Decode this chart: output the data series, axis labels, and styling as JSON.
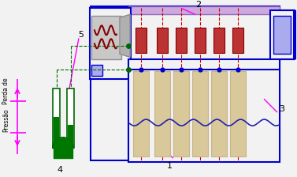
{
  "bg_color": "#f2f2f2",
  "blue": "#0000cc",
  "blue2": "#2222aa",
  "red_dash": "#cc0000",
  "green_dark": "#006600",
  "green_fill": "#007700",
  "magenta": "#ff00ff",
  "dark_red": "#880000",
  "gray": "#909090",
  "tan": "#c8b48a",
  "tan_fill": "#d8c89a",
  "white": "#ffffff",
  "purple": "#9966bb",
  "purple_fill": "#ccaadd",
  "blue_fill": "#aaaaee"
}
